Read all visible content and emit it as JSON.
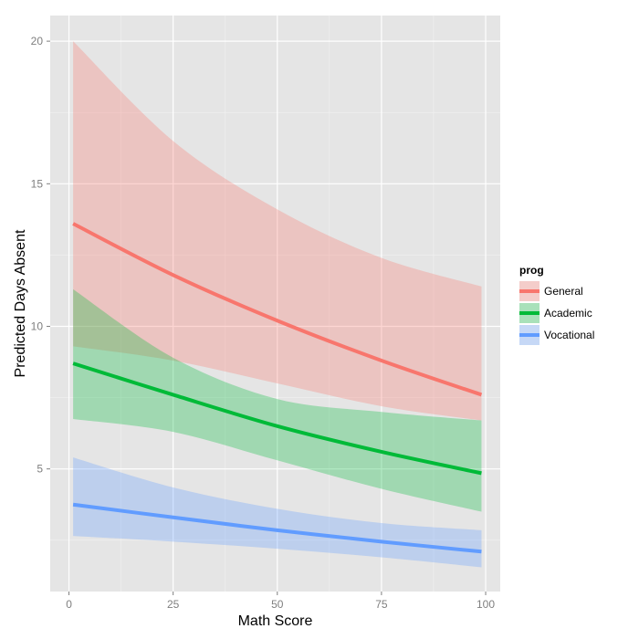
{
  "chart_data": {
    "type": "line",
    "title": "",
    "xlabel": "Math Score",
    "ylabel": "Predicted Days Absent",
    "xlim": [
      -4.5,
      103.5
    ],
    "ylim": [
      0.7,
      20.9
    ],
    "x_ticks": [
      0,
      25,
      50,
      75,
      100
    ],
    "y_ticks": [
      5,
      10,
      15,
      20
    ],
    "grid": true,
    "legend": {
      "title": "prog",
      "position": "right"
    },
    "x": [
      1,
      25,
      50,
      75,
      99
    ],
    "series": [
      {
        "name": "General",
        "color": "#F8766D",
        "values": [
          13.6,
          11.8,
          10.2,
          8.8,
          7.6
        ],
        "lower": [
          9.3,
          8.8,
          8.0,
          7.2,
          6.7
        ],
        "upper": [
          20.0,
          16.5,
          14.1,
          12.4,
          11.4
        ]
      },
      {
        "name": "Academic",
        "color": "#00BA38",
        "values": [
          8.7,
          7.6,
          6.5,
          5.6,
          4.85
        ],
        "lower": [
          6.75,
          6.3,
          5.3,
          4.3,
          3.5
        ],
        "upper": [
          11.3,
          8.9,
          7.45,
          7.0,
          6.7
        ]
      },
      {
        "name": "Vocational",
        "color": "#619CFF",
        "values": [
          3.75,
          3.3,
          2.85,
          2.45,
          2.1
        ],
        "lower": [
          2.65,
          2.45,
          2.2,
          1.9,
          1.55
        ],
        "upper": [
          5.4,
          4.35,
          3.6,
          3.1,
          2.85
        ]
      }
    ]
  }
}
